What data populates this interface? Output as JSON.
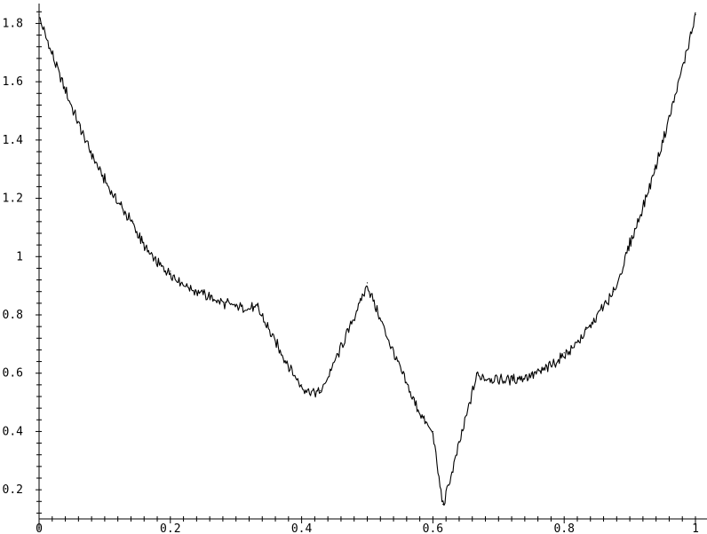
{
  "chart_data": {
    "type": "line",
    "title": "",
    "xlabel": "",
    "ylabel": "",
    "xlim": [
      0,
      1
    ],
    "ylim": [
      0.1,
      1.85
    ],
    "grid": false,
    "x_ticks": [
      0,
      0.2,
      0.4,
      0.6,
      0.8,
      1
    ],
    "x_tick_labels": [
      "0",
      "0.2",
      "0.4",
      "0.6",
      "0.8",
      "1"
    ],
    "y_ticks": [
      0.2,
      0.4,
      0.6,
      0.8,
      1,
      1.2,
      1.4,
      1.6,
      1.8
    ],
    "y_tick_labels": [
      "0.2",
      "0.4",
      "0.6",
      "0.8",
      "1",
      "1.2",
      "1.4",
      "1.6",
      "1.8"
    ],
    "series": [
      {
        "color": "#000000",
        "x": [
          0,
          0.0625,
          0.1,
          0.125,
          0.1429,
          0.1667,
          0.2,
          0.25,
          0.3333,
          0.4,
          0.4286,
          0.5,
          0.5714,
          0.6,
          0.6154,
          0.6667,
          0.75,
          0.8,
          0.8333,
          0.8571,
          0.875,
          0.9,
          0.9375,
          1
        ],
        "y": [
          1.83,
          1.45,
          1.27,
          1.18,
          1.12,
          1.02,
          0.95,
          0.88,
          0.83,
          0.56,
          0.54,
          0.91,
          0.51,
          0.4,
          0.15,
          0.6,
          0.6,
          0.67,
          0.75,
          0.83,
          0.88,
          1.05,
          1.3,
          1.83
        ]
      }
    ]
  }
}
